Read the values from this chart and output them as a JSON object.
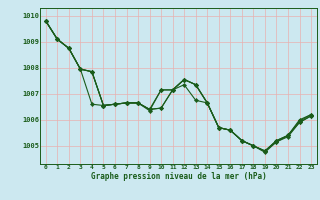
{
  "title": "Graphe pression niveau de la mer (hPa)",
  "bg_color": "#cce8f0",
  "plot_bg_color": "#cce8f0",
  "grid_color": "#e8b0b0",
  "line_color": "#1a5c1a",
  "marker_color": "#1a5c1a",
  "xlim": [
    -0.5,
    23.5
  ],
  "ylim": [
    1004.3,
    1010.3
  ],
  "yticks": [
    1005,
    1006,
    1007,
    1008,
    1009,
    1010
  ],
  "xticks": [
    0,
    1,
    2,
    3,
    4,
    5,
    6,
    7,
    8,
    9,
    10,
    11,
    12,
    13,
    14,
    15,
    16,
    17,
    18,
    19,
    20,
    21,
    22,
    23
  ],
  "lines": [
    [
      1009.8,
      1009.1,
      1008.75,
      1007.95,
      1006.6,
      1006.55,
      1006.6,
      1006.65,
      1006.65,
      1006.4,
      1006.45,
      1007.15,
      1007.35,
      1006.75,
      1006.65,
      1005.7,
      1005.6,
      1005.2,
      1005.0,
      1004.8,
      1005.2,
      1005.4,
      1006.0,
      1006.2
    ],
    [
      1009.8,
      1009.1,
      1008.75,
      1007.95,
      1007.85,
      1006.55,
      1006.6,
      1006.65,
      1006.65,
      1006.4,
      1006.45,
      1007.15,
      1007.55,
      1007.35,
      1006.65,
      1005.7,
      1005.6,
      1005.2,
      1005.0,
      1004.8,
      1005.2,
      1005.4,
      1005.95,
      1006.2
    ],
    [
      1009.8,
      1009.1,
      1008.75,
      1007.95,
      1007.85,
      1006.55,
      1006.6,
      1006.65,
      1006.65,
      1006.4,
      1007.15,
      1007.15,
      1007.55,
      1007.35,
      1006.65,
      1005.7,
      1005.6,
      1005.2,
      1005.0,
      1004.8,
      1005.15,
      1005.4,
      1005.9,
      1006.15
    ],
    [
      1009.8,
      1009.1,
      1008.75,
      1007.95,
      1007.85,
      1006.55,
      1006.6,
      1006.65,
      1006.65,
      1006.35,
      1007.15,
      1007.15,
      1007.55,
      1007.35,
      1006.65,
      1005.7,
      1005.6,
      1005.2,
      1005.0,
      1004.75,
      1005.15,
      1005.35,
      1005.9,
      1006.15
    ]
  ]
}
